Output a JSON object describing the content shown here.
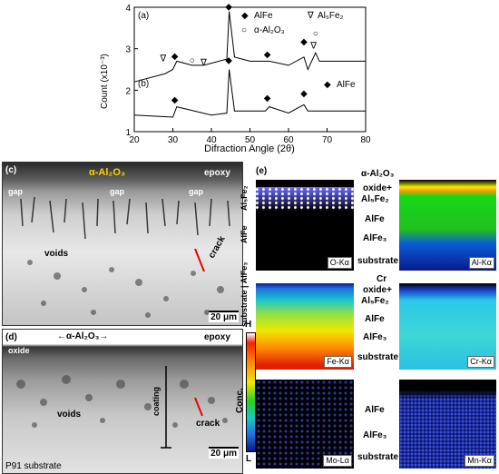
{
  "xrd": {
    "panel_a_label": "(a)",
    "panel_b_label": "(b)",
    "ylabel": "Count (x10⁻³)",
    "xlabel": "Difraction Angle (2θ)",
    "a_legend": [
      {
        "symbol": "◆",
        "text": "AlFe"
      },
      {
        "symbol": "○",
        "text": "α-Al₂O₃"
      },
      {
        "symbol": "∇",
        "text": "Al₅Fe₂"
      }
    ],
    "b_legend": [
      {
        "symbol": "◆",
        "text": "AlFe"
      }
    ],
    "yticks": [
      "4",
      "3",
      "2",
      "1"
    ],
    "xticks": [
      "20",
      "30",
      "40",
      "50",
      "60",
      "70",
      "80"
    ]
  },
  "chart_data": {
    "type": "line",
    "xlabel": "Difraction Angle (2θ)",
    "ylabel": "Count (x10⁻³)",
    "xlim": [
      20,
      80
    ],
    "ylim": [
      1,
      4
    ],
    "series": [
      {
        "name": "(a)",
        "x": [
          20,
          28,
          30,
          31,
          35,
          38,
          44,
          44.6,
          46,
          50,
          55,
          60,
          64,
          65,
          67,
          68,
          80
        ],
        "y": [
          2.2,
          2.4,
          2.5,
          2.7,
          2.6,
          2.6,
          2.75,
          3.9,
          2.8,
          2.7,
          2.7,
          2.6,
          2.8,
          2.5,
          2.9,
          2.7,
          2.7
        ]
      },
      {
        "name": "(b)",
        "x": [
          20,
          30,
          31,
          40,
          44,
          44.6,
          46,
          54,
          55,
          60,
          64,
          65,
          80
        ],
        "y": [
          1.4,
          1.35,
          1.6,
          1.4,
          1.45,
          2.5,
          1.5,
          1.5,
          1.6,
          1.45,
          1.65,
          1.5,
          1.5
        ]
      }
    ],
    "annotations_a": [
      {
        "symbol": "∇",
        "x": 27.5,
        "y": 2.7
      },
      {
        "symbol": "◆",
        "x": 30.5,
        "y": 2.75
      },
      {
        "symbol": "○",
        "x": 35,
        "y": 2.65
      },
      {
        "symbol": "∇",
        "x": 38,
        "y": 2.6
      },
      {
        "symbol": "◆",
        "x": 44.5,
        "y": 3.95
      },
      {
        "symbol": "◆",
        "x": 54.5,
        "y": 2.8
      },
      {
        "symbol": "◆",
        "x": 64,
        "y": 3.1
      },
      {
        "symbol": "∇",
        "x": 66.5,
        "y": 3.0
      },
      {
        "symbol": "○",
        "x": 67,
        "y": 3.3
      }
    ],
    "annotations_b": [
      {
        "symbol": "◆",
        "x": 30.5,
        "y": 1.7
      },
      {
        "symbol": "◆",
        "x": 44.5,
        "y": 2.65
      },
      {
        "symbol": "◆",
        "x": 54.5,
        "y": 1.75
      },
      {
        "symbol": "◆",
        "x": 64,
        "y": 1.85
      }
    ]
  },
  "panel_c": {
    "label": "(c)",
    "alumina": "α-Al₂O₃",
    "epoxy": "epoxy",
    "gap": "gap",
    "voids": "voids",
    "crack": "crack",
    "scale": "20 μm",
    "side_label_1": "Al₅Fe₂",
    "side_label_2": "AlFe",
    "side_label_3": "substrate | AlFe₃"
  },
  "panel_d": {
    "label": "(d)",
    "alumina": "←α-Al₂O₃→",
    "epoxy": "epoxy",
    "oxide": "oxide",
    "voids": "voids",
    "coating": "coating",
    "crack": "crack",
    "scale": "20 μm",
    "substrate": "P91 substrate"
  },
  "panel_e": {
    "label": "(e)",
    "top_label": "α-Al₂O₃",
    "oxide_plus": "oxide+",
    "al5fe2": "Al₅Fe₂",
    "alfe": "AlFe",
    "alfe3": "AlFe₃",
    "substrate": "substrate",
    "cr": "Cr",
    "scale_high": "H",
    "scale_title": "Conc.",
    "scale_low": "L",
    "maps": [
      "O-Kα",
      "Al-Kα",
      "Fe-Kα",
      "Cr-Kα",
      "Mo-Lα",
      "Mn-Kα"
    ]
  }
}
